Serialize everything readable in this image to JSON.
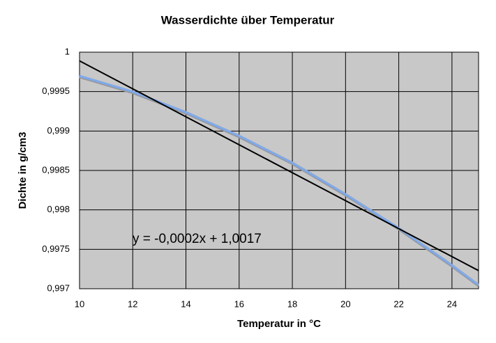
{
  "chart_data": {
    "type": "line",
    "title": "Wasserdichte über Temperatur",
    "x_label": "Temperatur in °C",
    "y_label": "Dichte in g/cm3",
    "x": [
      10,
      12,
      14,
      16,
      18,
      20,
      22,
      24,
      25
    ],
    "series": [
      {
        "color": "#7eaaee",
        "values": [
          0.9997,
          0.9995,
          0.99924,
          0.99894,
          0.9986,
          0.9982,
          0.99777,
          0.9973,
          0.99705
        ]
      }
    ],
    "trendline": {
      "x": [
        10,
        25
      ],
      "values": [
        0.99989,
        0.99723
      ],
      "color": "#000000"
    },
    "annotation": "y = -0,0002x + 1,0017",
    "xlim": [
      10,
      25
    ],
    "xticks": [
      10,
      12,
      14,
      16,
      18,
      20,
      22,
      24
    ],
    "ylim": [
      0.997,
      1
    ],
    "yticks": [
      {
        "value": 0.997,
        "label": "0,997"
      },
      {
        "value": 0.9975,
        "label": "0,9975"
      },
      {
        "value": 0.998,
        "label": "0,998"
      },
      {
        "value": 0.9985,
        "label": "0,9985"
      },
      {
        "value": 0.999,
        "label": "0,999"
      },
      {
        "value": 0.9995,
        "label": "0,9995"
      },
      1
    ],
    "grid": true,
    "plot_background": "#c8c8c8"
  }
}
